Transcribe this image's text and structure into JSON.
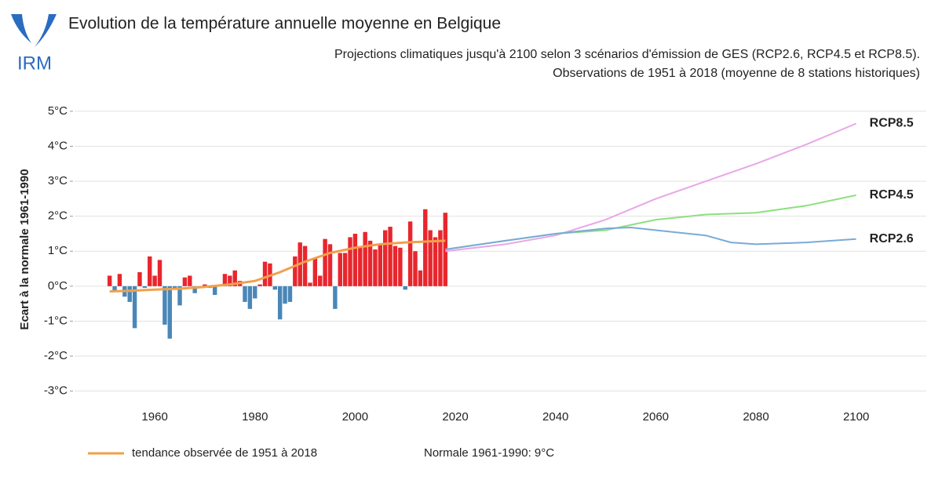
{
  "logo": "IRM",
  "chart_data": {
    "type": "bar",
    "title": "Evolution de la température annuelle moyenne en Belgique",
    "subtitle": [
      "Projections climatiques jusqu'à 2100 selon 3 scénarios d'émission de GES (RCP2.6, RCP4.5 et RCP8.5).",
      "Observations de 1951 à 2018 (moyenne de 8 stations historiques)"
    ],
    "y_label": "Ecart à la normale 1961-1990",
    "note": "Normale 1961-1990: 9°C",
    "xlim": [
      1944,
      2114
    ],
    "xticks": [
      1960,
      1980,
      2000,
      2020,
      2040,
      2060,
      2080,
      2100
    ],
    "ylim": [
      -3.3,
      5.2
    ],
    "yticks": [
      {
        "value": -3,
        "label": "-3°C"
      },
      {
        "value": -2,
        "label": "-2°C"
      },
      {
        "value": -1,
        "label": "-1°C"
      },
      {
        "value": 0,
        "label": "0°C"
      },
      {
        "value": 1,
        "label": "1°C"
      },
      {
        "value": 2,
        "label": "2°C"
      },
      {
        "value": 3,
        "label": "3°C"
      },
      {
        "value": 4,
        "label": "4°C"
      },
      {
        "value": 5,
        "label": "5°C"
      }
    ],
    "grid": true,
    "positive_color": "#e8262d",
    "negative_color": "#4a87b8",
    "x": [
      1951,
      1952,
      1953,
      1954,
      1955,
      1956,
      1957,
      1958,
      1959,
      1960,
      1961,
      1962,
      1963,
      1964,
      1965,
      1966,
      1967,
      1968,
      1969,
      1970,
      1971,
      1972,
      1973,
      1974,
      1975,
      1976,
      1977,
      1978,
      1979,
      1980,
      1981,
      1982,
      1983,
      1984,
      1985,
      1986,
      1987,
      1988,
      1989,
      1990,
      1991,
      1992,
      1993,
      1994,
      1995,
      1996,
      1997,
      1998,
      1999,
      2000,
      2001,
      2002,
      2003,
      2004,
      2005,
      2006,
      2007,
      2008,
      2009,
      2010,
      2011,
      2012,
      2013,
      2014,
      2015,
      2016,
      2017,
      2018
    ],
    "values": [
      0.3,
      -0.15,
      0.35,
      -0.3,
      -0.45,
      -1.2,
      0.4,
      -0.05,
      0.85,
      0.3,
      0.75,
      -1.1,
      -1.5,
      -0.1,
      -0.55,
      0.25,
      0.3,
      -0.2,
      -0.05,
      0.05,
      -0.05,
      -0.25,
      0.05,
      0.35,
      0.3,
      0.45,
      0.15,
      -0.45,
      -0.65,
      -0.35,
      0.05,
      0.7,
      0.65,
      -0.1,
      -0.95,
      -0.5,
      -0.45,
      0.85,
      1.25,
      1.15,
      0.1,
      0.8,
      0.3,
      1.35,
      1.2,
      -0.65,
      0.95,
      0.95,
      1.4,
      1.5,
      1.1,
      1.55,
      1.3,
      1.05,
      1.2,
      1.6,
      1.7,
      1.15,
      1.1,
      -0.1,
      1.85,
      1.0,
      0.45,
      2.2,
      1.6,
      1.4,
      1.6,
      2.1
    ],
    "series": [
      {
        "name": "tendance observée de 1951 à 2018",
        "color": "#f0a04b",
        "x": [
          1951,
          1955,
          1960,
          1965,
          1970,
          1975,
          1980,
          1985,
          1990,
          1995,
          2000,
          2005,
          2010,
          2015,
          2018
        ],
        "values": [
          -0.15,
          -0.13,
          -0.1,
          -0.07,
          -0.02,
          0.05,
          0.15,
          0.4,
          0.7,
          0.95,
          1.1,
          1.2,
          1.25,
          1.28,
          1.3
        ]
      },
      {
        "name": "RCP8.5",
        "color": "#e6a8e8",
        "x": [
          2018,
          2030,
          2040,
          2050,
          2060,
          2070,
          2080,
          2090,
          2100
        ],
        "values": [
          1.0,
          1.2,
          1.45,
          1.9,
          2.5,
          3.0,
          3.5,
          4.05,
          4.65
        ]
      },
      {
        "name": "RCP4.5",
        "color": "#8ddf7f",
        "x": [
          2018,
          2030,
          2040,
          2050,
          2060,
          2070,
          2080,
          2090,
          2100
        ],
        "values": [
          1.05,
          1.3,
          1.5,
          1.6,
          1.9,
          2.05,
          2.1,
          2.3,
          2.6
        ]
      },
      {
        "name": "RCP2.6",
        "color": "#7aaad8",
        "x": [
          2018,
          2030,
          2040,
          2050,
          2055,
          2060,
          2070,
          2075,
          2080,
          2090,
          2100
        ],
        "values": [
          1.05,
          1.3,
          1.5,
          1.65,
          1.68,
          1.6,
          1.45,
          1.25,
          1.2,
          1.25,
          1.35
        ]
      }
    ]
  }
}
